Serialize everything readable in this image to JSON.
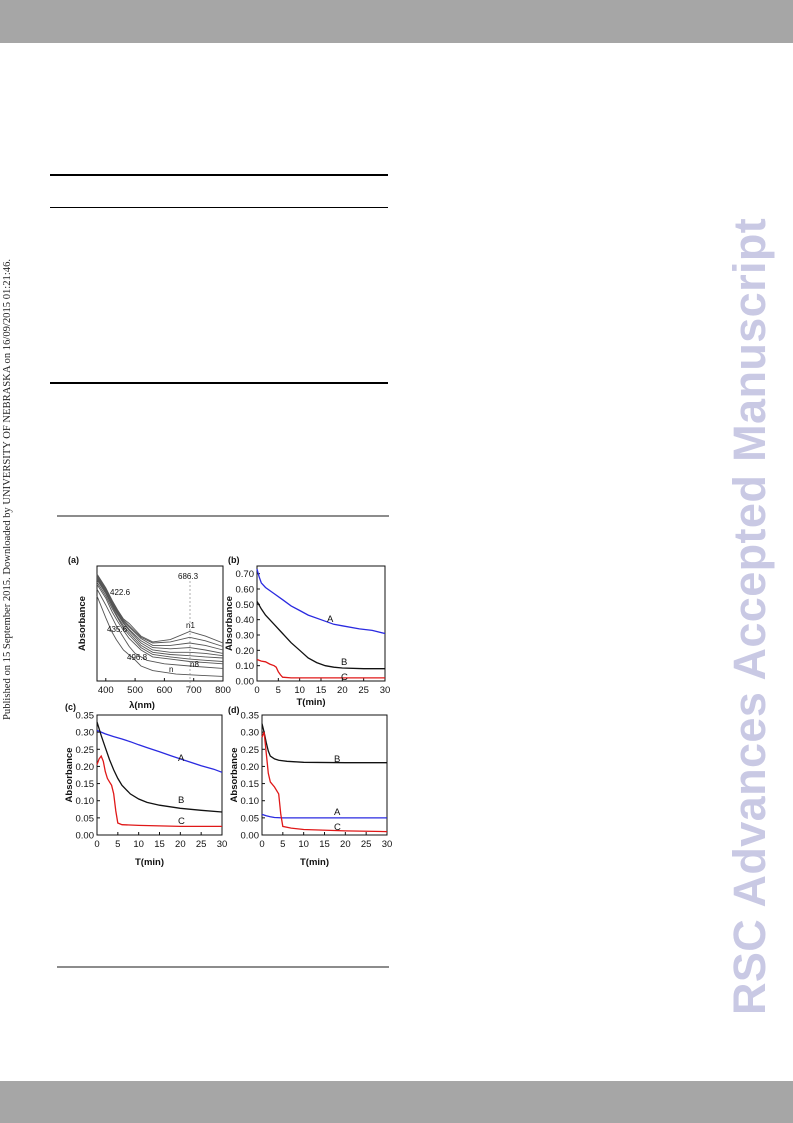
{
  "side_note": "Published on 15 September 2015. Downloaded by UNIVERSITY OF NEBRASKA on 16/09/2015 01:21:46.",
  "watermark": "RSC Advances Accepted Manuscript",
  "colors": {
    "A": "#2a2ae0",
    "B": "#111111",
    "C": "#e01818",
    "spectra": "#555555",
    "bars": "#a6a6a6",
    "watermark": "#c9c9e4"
  },
  "panels": [
    {
      "label": "(a)"
    },
    {
      "label": "(b)"
    },
    {
      "label": "(c)"
    },
    {
      "label": "(d)"
    }
  ],
  "chart_data": [
    {
      "panel": "(a)",
      "type": "line",
      "xlabel": "λ(nm)",
      "ylabel": "Absorbance",
      "xlim": [
        370,
        800
      ],
      "ylim": [
        0,
        1
      ],
      "xticks": [
        400,
        500,
        600,
        700,
        800
      ],
      "annotations": [
        "422.6",
        "686.3",
        "435.6",
        "496.8",
        "n1",
        "n8",
        "n"
      ],
      "series": [
        {
          "values": [
            [
              370,
              0.93
            ],
            [
              400,
              0.81
            ],
            [
              422,
              0.7
            ],
            [
              440,
              0.62
            ],
            [
              460,
              0.54
            ],
            [
              480,
              0.5
            ],
            [
              520,
              0.39
            ],
            [
              560,
              0.34
            ],
            [
              620,
              0.36
            ],
            [
              686,
              0.43
            ],
            [
              740,
              0.39
            ],
            [
              800,
              0.33
            ]
          ]
        },
        {
          "values": [
            [
              370,
              0.92
            ],
            [
              400,
              0.8
            ],
            [
              422,
              0.69
            ],
            [
              440,
              0.61
            ],
            [
              460,
              0.53
            ],
            [
              480,
              0.48
            ],
            [
              520,
              0.38
            ],
            [
              560,
              0.33
            ],
            [
              620,
              0.34
            ],
            [
              686,
              0.38
            ],
            [
              740,
              0.35
            ],
            [
              800,
              0.3
            ]
          ]
        },
        {
          "values": [
            [
              370,
              0.91
            ],
            [
              400,
              0.79
            ],
            [
              422,
              0.68
            ],
            [
              440,
              0.6
            ],
            [
              460,
              0.52
            ],
            [
              480,
              0.47
            ],
            [
              520,
              0.37
            ],
            [
              560,
              0.31
            ],
            [
              620,
              0.31
            ],
            [
              686,
              0.33
            ],
            [
              740,
              0.31
            ],
            [
              800,
              0.27
            ]
          ]
        },
        {
          "values": [
            [
              370,
              0.9
            ],
            [
              400,
              0.78
            ],
            [
              422,
              0.67
            ],
            [
              440,
              0.59
            ],
            [
              460,
              0.51
            ],
            [
              480,
              0.45
            ],
            [
              520,
              0.35
            ],
            [
              560,
              0.29
            ],
            [
              620,
              0.28
            ],
            [
              686,
              0.29
            ],
            [
              740,
              0.27
            ],
            [
              800,
              0.24
            ]
          ]
        },
        {
          "values": [
            [
              370,
              0.89
            ],
            [
              400,
              0.77
            ],
            [
              422,
              0.66
            ],
            [
              440,
              0.58
            ],
            [
              460,
              0.5
            ],
            [
              480,
              0.44
            ],
            [
              520,
              0.33
            ],
            [
              560,
              0.27
            ],
            [
              620,
              0.25
            ],
            [
              686,
              0.25
            ],
            [
              740,
              0.24
            ],
            [
              800,
              0.22
            ]
          ]
        },
        {
          "values": [
            [
              370,
              0.88
            ],
            [
              400,
              0.76
            ],
            [
              422,
              0.65
            ],
            [
              440,
              0.56
            ],
            [
              460,
              0.48
            ],
            [
              480,
              0.42
            ],
            [
              520,
              0.31
            ],
            [
              560,
              0.25
            ],
            [
              620,
              0.23
            ],
            [
              686,
              0.22
            ],
            [
              740,
              0.21
            ],
            [
              800,
              0.2
            ]
          ]
        },
        {
          "values": [
            [
              370,
              0.86
            ],
            [
              400,
              0.74
            ],
            [
              422,
              0.63
            ],
            [
              440,
              0.55
            ],
            [
              460,
              0.46
            ],
            [
              480,
              0.4
            ],
            [
              520,
              0.29
            ],
            [
              560,
              0.23
            ],
            [
              620,
              0.21
            ],
            [
              686,
              0.19
            ],
            [
              740,
              0.18
            ],
            [
              800,
              0.17
            ]
          ]
        },
        {
          "values": [
            [
              370,
              0.84
            ],
            [
              400,
              0.72
            ],
            [
              422,
              0.6
            ],
            [
              440,
              0.52
            ],
            [
              460,
              0.44
            ],
            [
              480,
              0.37
            ],
            [
              520,
              0.27
            ],
            [
              560,
              0.21
            ],
            [
              620,
              0.19
            ],
            [
              686,
              0.17
            ],
            [
              740,
              0.16
            ],
            [
              800,
              0.15
            ]
          ]
        },
        {
          "values": [
            [
              370,
              0.8
            ],
            [
              400,
              0.66
            ],
            [
              420,
              0.56
            ],
            [
              436,
              0.48
            ],
            [
              460,
              0.38
            ],
            [
              480,
              0.3
            ],
            [
              500,
              0.24
            ],
            [
              540,
              0.18
            ],
            [
              600,
              0.15
            ],
            [
              686,
              0.13
            ],
            [
              800,
              0.11
            ]
          ]
        },
        {
          "values": [
            [
              370,
              0.74
            ],
            [
              400,
              0.55
            ],
            [
              420,
              0.43
            ],
            [
              436,
              0.36
            ],
            [
              460,
              0.27
            ],
            [
              497,
              0.19
            ],
            [
              520,
              0.13
            ],
            [
              560,
              0.09
            ],
            [
              640,
              0.06
            ],
            [
              720,
              0.05
            ],
            [
              800,
              0.04
            ]
          ]
        }
      ]
    },
    {
      "panel": "(b)",
      "type": "line",
      "xlabel": "T(min)",
      "ylabel": "Absorbance",
      "xlim": [
        0,
        30
      ],
      "ylim": [
        0,
        0.75
      ],
      "xticks": [
        0,
        5,
        10,
        15,
        20,
        25,
        30
      ],
      "yticks": [
        0.0,
        0.1,
        0.2,
        0.3,
        0.4,
        0.5,
        0.6,
        0.7
      ],
      "series": [
        {
          "name": "A",
          "values": [
            [
              0,
              0.73
            ],
            [
              0.5,
              0.68
            ],
            [
              1,
              0.64
            ],
            [
              2,
              0.61
            ],
            [
              4,
              0.57
            ],
            [
              6,
              0.53
            ],
            [
              8,
              0.49
            ],
            [
              10,
              0.46
            ],
            [
              12,
              0.43
            ],
            [
              15,
              0.4
            ],
            [
              18,
              0.37
            ],
            [
              20,
              0.36
            ],
            [
              24,
              0.34
            ],
            [
              27,
              0.33
            ],
            [
              30,
              0.31
            ]
          ]
        },
        {
          "name": "B",
          "values": [
            [
              0,
              0.52
            ],
            [
              1,
              0.47
            ],
            [
              2,
              0.43
            ],
            [
              4,
              0.37
            ],
            [
              6,
              0.31
            ],
            [
              8,
              0.25
            ],
            [
              10,
              0.2
            ],
            [
              12,
              0.15
            ],
            [
              14,
              0.12
            ],
            [
              16,
              0.1
            ],
            [
              18,
              0.09
            ],
            [
              20,
              0.085
            ],
            [
              25,
              0.08
            ],
            [
              30,
              0.08
            ]
          ]
        },
        {
          "name": "C",
          "values": [
            [
              0,
              0.14
            ],
            [
              1,
              0.13
            ],
            [
              2,
              0.125
            ],
            [
              3,
              0.11
            ],
            [
              4,
              0.1
            ],
            [
              4.5,
              0.09
            ],
            [
              5,
              0.06
            ],
            [
              5.5,
              0.04
            ],
            [
              6,
              0.025
            ],
            [
              8,
              0.02
            ],
            [
              12,
              0.02
            ],
            [
              20,
              0.02
            ],
            [
              30,
              0.02
            ]
          ]
        }
      ]
    },
    {
      "panel": "(c)",
      "type": "line",
      "xlabel": "T(min)",
      "ylabel": "Absorbance",
      "xlim": [
        0,
        30
      ],
      "ylim": [
        0,
        0.35
      ],
      "xticks": [
        0,
        5,
        10,
        15,
        20,
        25,
        30
      ],
      "yticks": [
        0.0,
        0.05,
        0.1,
        0.15,
        0.2,
        0.25,
        0.3,
        0.35
      ],
      "series": [
        {
          "name": "A",
          "values": [
            [
              0,
              0.305
            ],
            [
              2,
              0.295
            ],
            [
              4,
              0.287
            ],
            [
              6,
              0.28
            ],
            [
              8,
              0.272
            ],
            [
              10,
              0.263
            ],
            [
              12,
              0.255
            ],
            [
              15,
              0.243
            ],
            [
              18,
              0.23
            ],
            [
              20,
              0.222
            ],
            [
              22,
              0.214
            ],
            [
              25,
              0.202
            ],
            [
              28,
              0.192
            ],
            [
              30,
              0.183
            ]
          ]
        },
        {
          "name": "B",
          "values": [
            [
              0,
              0.33
            ],
            [
              0.5,
              0.31
            ],
            [
              1,
              0.29
            ],
            [
              2,
              0.255
            ],
            [
              3,
              0.22
            ],
            [
              4,
              0.19
            ],
            [
              5,
              0.165
            ],
            [
              6,
              0.145
            ],
            [
              8,
              0.12
            ],
            [
              10,
              0.105
            ],
            [
              12,
              0.095
            ],
            [
              15,
              0.087
            ],
            [
              20,
              0.078
            ],
            [
              25,
              0.072
            ],
            [
              30,
              0.067
            ]
          ]
        },
        {
          "name": "C",
          "values": [
            [
              0,
              0.205
            ],
            [
              0.5,
              0.222
            ],
            [
              1,
              0.23
            ],
            [
              1.5,
              0.215
            ],
            [
              2,
              0.185
            ],
            [
              2.5,
              0.165
            ],
            [
              3,
              0.155
            ],
            [
              3.5,
              0.145
            ],
            [
              4,
              0.12
            ],
            [
              4.5,
              0.07
            ],
            [
              5,
              0.035
            ],
            [
              6,
              0.03
            ],
            [
              10,
              0.028
            ],
            [
              20,
              0.025
            ],
            [
              30,
              0.025
            ]
          ]
        }
      ]
    },
    {
      "panel": "(d)",
      "type": "line",
      "xlabel": "T(min)",
      "ylabel": "Absorbance",
      "xlim": [
        0,
        30
      ],
      "ylim": [
        0,
        0.35
      ],
      "xticks": [
        0,
        5,
        10,
        15,
        20,
        25,
        30
      ],
      "yticks": [
        0.0,
        0.05,
        0.1,
        0.15,
        0.2,
        0.25,
        0.3,
        0.35
      ],
      "series": [
        {
          "name": "B",
          "values": [
            [
              0,
              0.325
            ],
            [
              0.5,
              0.3
            ],
            [
              1,
              0.27
            ],
            [
              1.5,
              0.245
            ],
            [
              2,
              0.23
            ],
            [
              3,
              0.222
            ],
            [
              4,
              0.218
            ],
            [
              6,
              0.215
            ],
            [
              10,
              0.212
            ],
            [
              20,
              0.211
            ],
            [
              30,
              0.211
            ]
          ]
        },
        {
          "name": "A",
          "values": [
            [
              0,
              0.06
            ],
            [
              1,
              0.056
            ],
            [
              2,
              0.053
            ],
            [
              3,
              0.051
            ],
            [
              5,
              0.05
            ],
            [
              10,
              0.05
            ],
            [
              20,
              0.05
            ],
            [
              30,
              0.05
            ]
          ]
        },
        {
          "name": "C",
          "values": [
            [
              0,
              0.285
            ],
            [
              0.5,
              0.3
            ],
            [
              1,
              0.24
            ],
            [
              1.5,
              0.18
            ],
            [
              2,
              0.155
            ],
            [
              3,
              0.14
            ],
            [
              4,
              0.12
            ],
            [
              4.5,
              0.06
            ],
            [
              5,
              0.025
            ],
            [
              7,
              0.02
            ],
            [
              10,
              0.016
            ],
            [
              20,
              0.012
            ],
            [
              30,
              0.01
            ]
          ]
        }
      ]
    }
  ]
}
